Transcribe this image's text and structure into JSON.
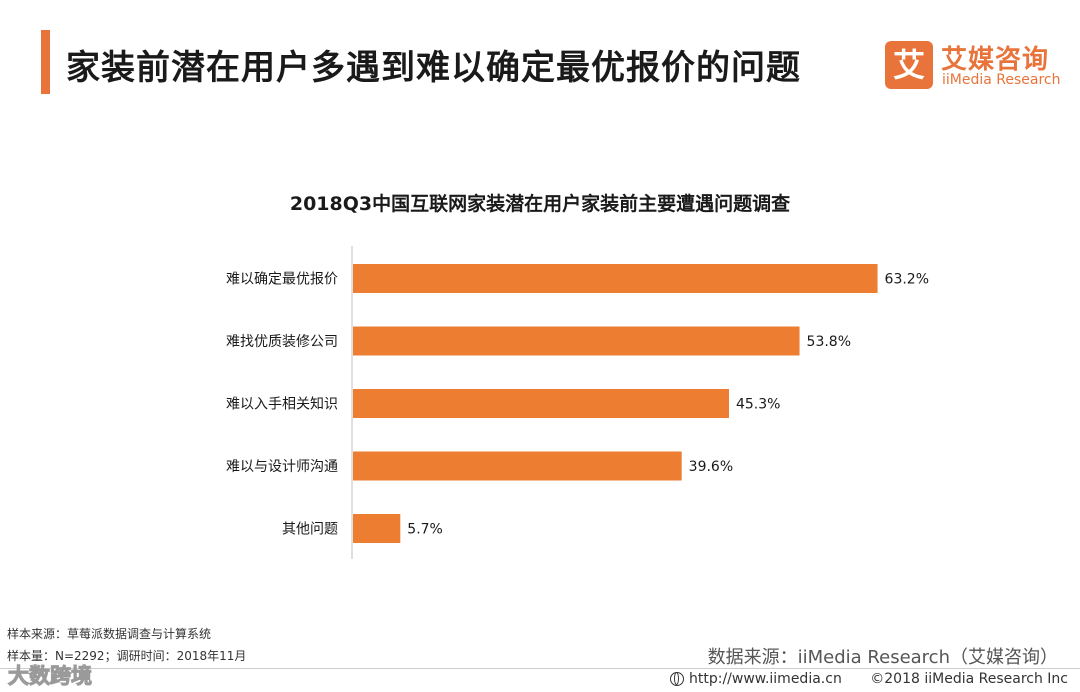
{
  "header": {
    "title": "家装前潜在用户多遇到难以确定最优报价的问题"
  },
  "logo": {
    "mark": "艾",
    "name_cn": "艾媒咨询",
    "name_en": "iiMedia Research"
  },
  "colors": {
    "accent": "#e8743b",
    "bar": "#ed7d31"
  },
  "chart_data": {
    "type": "bar",
    "orientation": "horizontal",
    "title": "2018Q3中国互联网家装潜在用户家装前主要遭遇问题调查",
    "categories": [
      "难以确定最优报价",
      "难找优质装修公司",
      "难以入手相关知识",
      "难以与设计师沟通",
      "其他问题"
    ],
    "values": [
      63.2,
      53.8,
      45.3,
      39.6,
      5.7
    ],
    "value_suffix": "%",
    "xlim": [
      0,
      100
    ],
    "grid": false,
    "legend": "none"
  },
  "footer": {
    "sample_source": "样本来源：草莓派数据调查与计算系统",
    "sample_size": "样本量：N=2292；调研时间：2018年11月",
    "data_source": "数据来源：iiMedia Research（艾媒咨询）",
    "url": "http://www.iimedia.cn",
    "copyright": "©2018  iiMedia Research  Inc",
    "watermark": "大数跨境",
    "icons": [
      "globe-icon"
    ]
  }
}
